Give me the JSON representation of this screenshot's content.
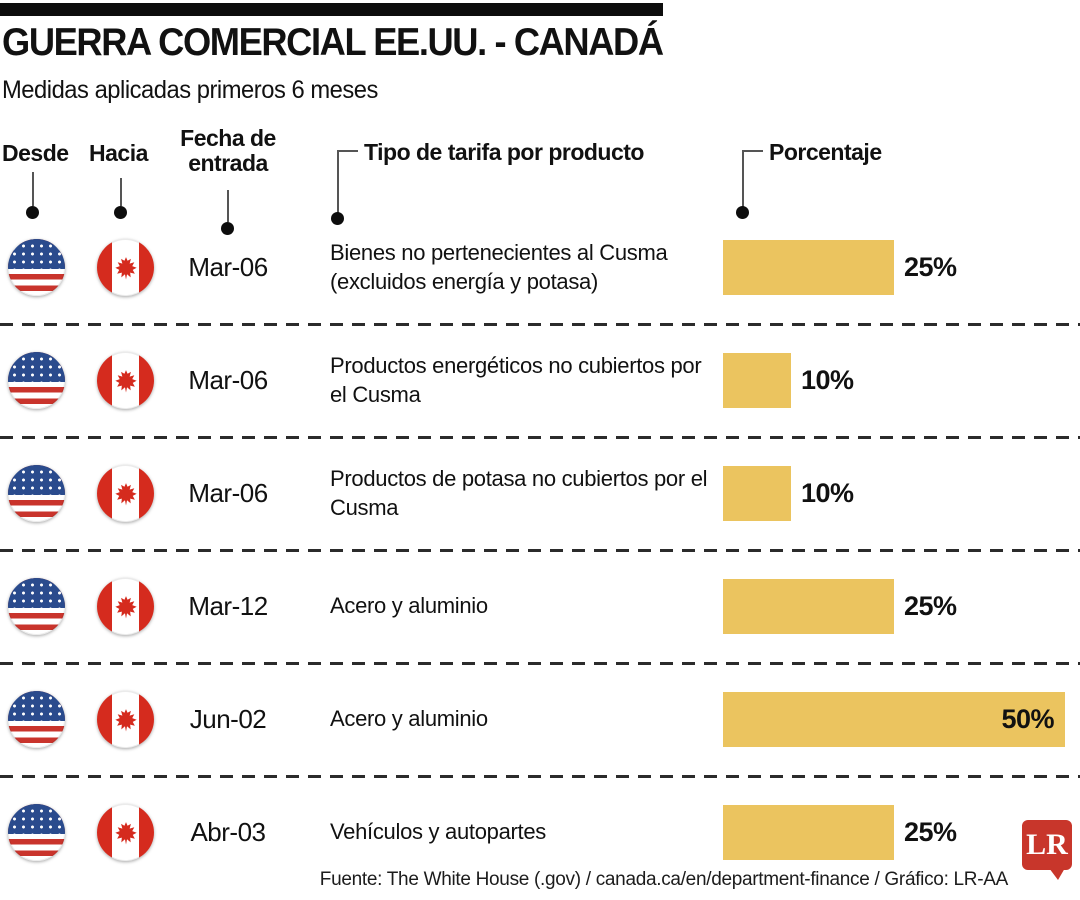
{
  "header": {
    "title": "GUERRA COMERCIAL EE.UU. - CANADÁ",
    "subtitle": "Medidas aplicadas primeros 6 meses"
  },
  "columns": {
    "from": "Desde",
    "to": "Hacia",
    "date_line1": "Fecha de",
    "date_line2": "entrada",
    "tariff": "Tipo de tarifa por producto",
    "percent": "Porcentaje"
  },
  "rows": [
    {
      "from": "EE.UU.",
      "to": "Canadá",
      "from_icon": "usa-flag",
      "to_icon": "canada-flag",
      "date": "Mar-06",
      "tariff": "Bienes no pertenecientes al Cusma (excluidos energía y potasa)",
      "percent": 25,
      "percent_label": "25%"
    },
    {
      "from": "EE.UU.",
      "to": "Canadá",
      "from_icon": "usa-flag",
      "to_icon": "canada-flag",
      "date": "Mar-06",
      "tariff": "Productos energéticos no cubiertos por el Cusma",
      "percent": 10,
      "percent_label": "10%"
    },
    {
      "from": "EE.UU.",
      "to": "Canadá",
      "from_icon": "usa-flag",
      "to_icon": "canada-flag",
      "date": "Mar-06",
      "tariff": "Productos de potasa no cubiertos por el Cusma",
      "percent": 10,
      "percent_label": "10%"
    },
    {
      "from": "EE.UU.",
      "to": "Canadá",
      "from_icon": "usa-flag",
      "to_icon": "canada-flag",
      "date": "Mar-12",
      "tariff": "Acero y aluminio",
      "percent": 25,
      "percent_label": "25%"
    },
    {
      "from": "EE.UU.",
      "to": "Canadá",
      "from_icon": "usa-flag",
      "to_icon": "canada-flag",
      "date": "Jun-02",
      "tariff": "Acero y aluminio",
      "percent": 50,
      "percent_label": "50%"
    },
    {
      "from": "EE.UU.",
      "to": "Canadá",
      "from_icon": "usa-flag",
      "to_icon": "canada-flag",
      "date": "Abr-03",
      "tariff": "Vehículos y autopartes",
      "percent": 25,
      "percent_label": "25%"
    }
  ],
  "footer": {
    "source": "Fuente: The White House (.gov) / canada.ca/en/department-finance / Gráfico: LR-AA",
    "logo_text": "LR"
  },
  "colors": {
    "bar": "#EBC45F",
    "logo": "#C8362B",
    "us_blue": "#2A4B8D",
    "us_stripe_red": "#C9342C",
    "canada_red": "#D52B1E",
    "ink": "#111111"
  },
  "chart_data": {
    "type": "bar",
    "title": "GUERRA COMERCIAL EE.UU. - CANADÁ",
    "subtitle": "Medidas aplicadas primeros 6 meses",
    "orientation": "horizontal",
    "from": "EE.UU.",
    "to": "Canadá",
    "categories": [
      "Bienes no pertenecientes al Cusma (excluidos energía y potasa)",
      "Productos energéticos no cubiertos por el Cusma",
      "Productos de potasa no cubiertos por el Cusma",
      "Acero y aluminio",
      "Acero y aluminio",
      "Vehículos y autopartes"
    ],
    "dates": [
      "Mar-06",
      "Mar-06",
      "Mar-06",
      "Mar-12",
      "Jun-02",
      "Abr-03"
    ],
    "values": [
      25,
      10,
      10,
      25,
      50,
      25
    ],
    "unit": "%",
    "xlim": [
      0,
      50
    ],
    "grid": false,
    "legend": false,
    "bar_color": "#EBC45F",
    "source": "Fuente: The White House (.gov) / canada.ca/en/department-finance / Gráfico: LR-AA"
  }
}
